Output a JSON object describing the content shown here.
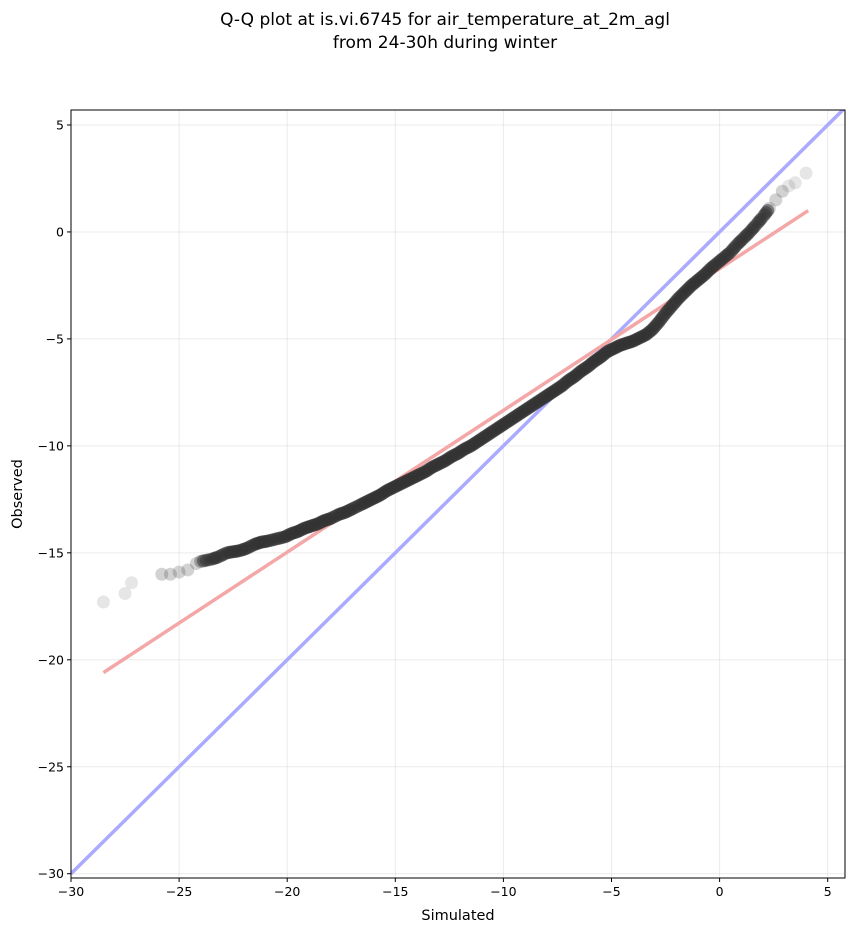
{
  "chart_data": {
    "type": "scatter",
    "title_lines": [
      "Q-Q plot at is.vi.6745 for air_temperature_at_2m_agl",
      "from 24-30h during winter"
    ],
    "xlabel": "Simulated",
    "ylabel": "Observed",
    "xlim": [
      -30,
      5.8
    ],
    "ylim": [
      -30.2,
      5.7
    ],
    "xticks": [
      -30,
      -25,
      -20,
      -15,
      -10,
      -5,
      0,
      5
    ],
    "yticks": [
      -30,
      -25,
      -20,
      -15,
      -10,
      -5,
      0,
      5
    ],
    "xtick_labels": [
      "−30",
      "−25",
      "−20",
      "−15",
      "−10",
      "−5",
      "0",
      "5"
    ],
    "ytick_labels": [
      "−30",
      "−25",
      "−20",
      "−15",
      "−10",
      "−5",
      "0",
      "5"
    ],
    "grid": true,
    "reference_line": {
      "name": "1:1 line",
      "color": "#aaaaff",
      "x": [
        -30,
        5.8
      ],
      "y": [
        -30,
        5.8
      ]
    },
    "fit_line": {
      "name": "linear fit",
      "color": "#f4a7a7",
      "x": [
        -28.5,
        4.1
      ],
      "y": [
        -20.6,
        1.0
      ]
    },
    "series": [
      {
        "marker_color": "#333333",
        "points": [
          {
            "x": -28.5,
            "y": -17.3
          },
          {
            "x": -27.5,
            "y": -16.9
          },
          {
            "x": -27.2,
            "y": -16.4
          },
          {
            "x": -25.8,
            "y": -16.0
          },
          {
            "x": -25.4,
            "y": -16.0
          },
          {
            "x": -25.0,
            "y": -15.9
          },
          {
            "x": -24.6,
            "y": -15.8
          },
          {
            "x": -24.2,
            "y": -15.5
          },
          {
            "x": -24.0,
            "y": -15.4
          },
          {
            "x": -23.5,
            "y": -15.3
          },
          {
            "x": -23.2,
            "y": -15.2
          },
          {
            "x": -22.8,
            "y": -15.0
          },
          {
            "x": -22.5,
            "y": -14.95
          },
          {
            "x": -22.2,
            "y": -14.9
          },
          {
            "x": -21.9,
            "y": -14.8
          },
          {
            "x": -21.5,
            "y": -14.6
          },
          {
            "x": -21.2,
            "y": -14.5
          },
          {
            "x": -20.9,
            "y": -14.45
          },
          {
            "x": -20.5,
            "y": -14.35
          },
          {
            "x": -20.1,
            "y": -14.25
          },
          {
            "x": -19.8,
            "y": -14.1
          },
          {
            "x": -19.5,
            "y": -14.0
          },
          {
            "x": -19.2,
            "y": -13.85
          },
          {
            "x": -18.9,
            "y": -13.75
          },
          {
            "x": -18.6,
            "y": -13.65
          },
          {
            "x": -18.3,
            "y": -13.5
          },
          {
            "x": -18.0,
            "y": -13.4
          },
          {
            "x": -17.6,
            "y": -13.2
          },
          {
            "x": -17.3,
            "y": -13.1
          },
          {
            "x": -17.0,
            "y": -12.95
          },
          {
            "x": -16.6,
            "y": -12.75
          },
          {
            "x": -16.3,
            "y": -12.6
          },
          {
            "x": -16.0,
            "y": -12.45
          },
          {
            "x": -15.7,
            "y": -12.3
          },
          {
            "x": -15.4,
            "y": -12.1
          },
          {
            "x": -15.1,
            "y": -11.95
          },
          {
            "x": -14.8,
            "y": -11.8
          },
          {
            "x": -14.5,
            "y": -11.65
          },
          {
            "x": -14.2,
            "y": -11.5
          },
          {
            "x": -13.9,
            "y": -11.35
          },
          {
            "x": -13.6,
            "y": -11.2
          },
          {
            "x": -13.3,
            "y": -11.0
          },
          {
            "x": -13.0,
            "y": -10.85
          },
          {
            "x": -12.7,
            "y": -10.7
          },
          {
            "x": -12.4,
            "y": -10.5
          },
          {
            "x": -12.1,
            "y": -10.35
          },
          {
            "x": -11.8,
            "y": -10.15
          },
          {
            "x": -11.5,
            "y": -10.0
          },
          {
            "x": -11.2,
            "y": -9.8
          },
          {
            "x": -10.9,
            "y": -9.6
          },
          {
            "x": -10.6,
            "y": -9.4
          },
          {
            "x": -10.3,
            "y": -9.2
          },
          {
            "x": -10.0,
            "y": -9.0
          },
          {
            "x": -9.7,
            "y": -8.8
          },
          {
            "x": -9.4,
            "y": -8.6
          },
          {
            "x": -9.1,
            "y": -8.4
          },
          {
            "x": -8.8,
            "y": -8.2
          },
          {
            "x": -8.5,
            "y": -8.0
          },
          {
            "x": -8.2,
            "y": -7.8
          },
          {
            "x": -7.9,
            "y": -7.6
          },
          {
            "x": -7.6,
            "y": -7.4
          },
          {
            "x": -7.3,
            "y": -7.2
          },
          {
            "x": -7.0,
            "y": -6.95
          },
          {
            "x": -6.7,
            "y": -6.75
          },
          {
            "x": -6.4,
            "y": -6.5
          },
          {
            "x": -6.1,
            "y": -6.3
          },
          {
            "x": -5.8,
            "y": -6.05
          },
          {
            "x": -5.5,
            "y": -5.85
          },
          {
            "x": -5.2,
            "y": -5.6
          },
          {
            "x": -4.9,
            "y": -5.45
          },
          {
            "x": -4.6,
            "y": -5.3
          },
          {
            "x": -4.3,
            "y": -5.2
          },
          {
            "x": -4.0,
            "y": -5.1
          },
          {
            "x": -3.7,
            "y": -4.95
          },
          {
            "x": -3.4,
            "y": -4.8
          },
          {
            "x": -3.1,
            "y": -4.55
          },
          {
            "x": -2.8,
            "y": -4.2
          },
          {
            "x": -2.5,
            "y": -3.8
          },
          {
            "x": -2.2,
            "y": -3.45
          },
          {
            "x": -1.9,
            "y": -3.1
          },
          {
            "x": -1.6,
            "y": -2.8
          },
          {
            "x": -1.3,
            "y": -2.5
          },
          {
            "x": -1.0,
            "y": -2.25
          },
          {
            "x": -0.7,
            "y": -2.0
          },
          {
            "x": -0.4,
            "y": -1.7
          },
          {
            "x": -0.1,
            "y": -1.45
          },
          {
            "x": 0.2,
            "y": -1.2
          },
          {
            "x": 0.5,
            "y": -0.95
          },
          {
            "x": 0.8,
            "y": -0.6
          },
          {
            "x": 1.1,
            "y": -0.3
          },
          {
            "x": 1.4,
            "y": 0.0
          },
          {
            "x": 1.7,
            "y": 0.35
          },
          {
            "x": 2.0,
            "y": 0.7
          },
          {
            "x": 2.3,
            "y": 1.1
          },
          {
            "x": 2.6,
            "y": 1.5
          },
          {
            "x": 2.9,
            "y": 1.9
          },
          {
            "x": 3.2,
            "y": 2.15
          },
          {
            "x": 3.5,
            "y": 2.3
          },
          {
            "x": 4.0,
            "y": 2.75
          }
        ]
      }
    ]
  }
}
